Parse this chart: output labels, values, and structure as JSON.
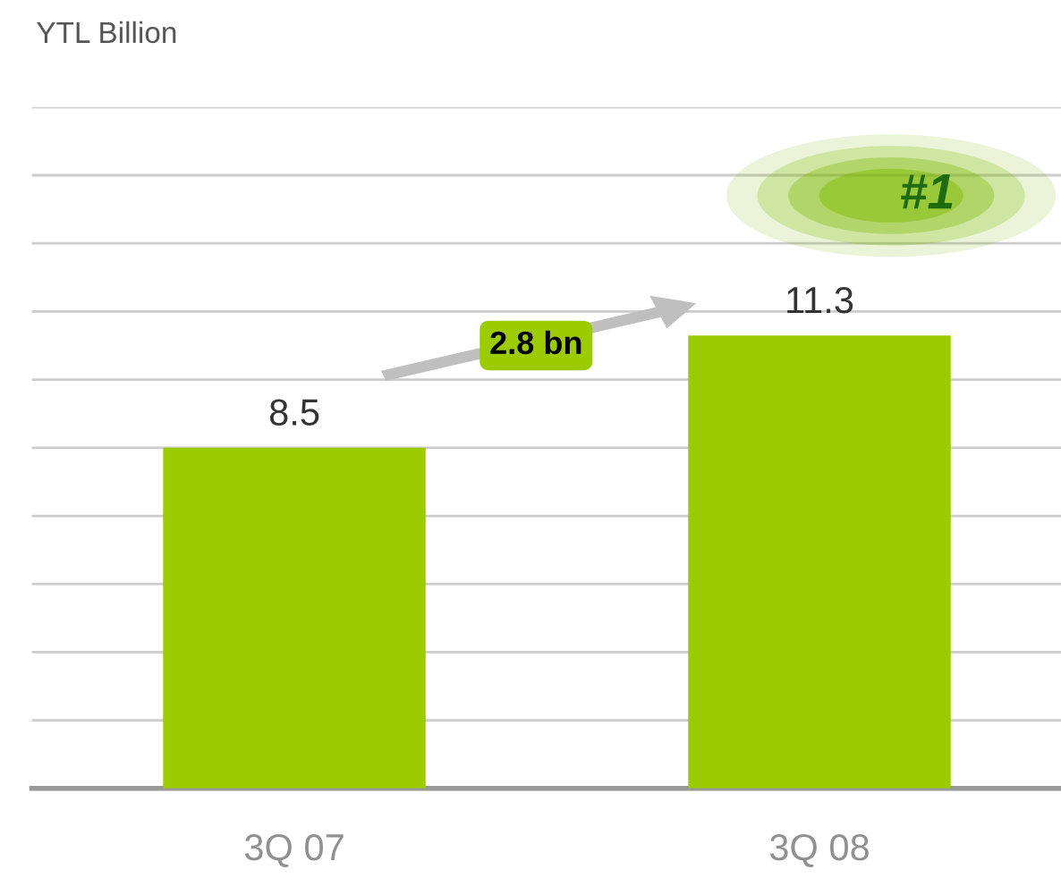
{
  "chart_data": {
    "type": "bar",
    "ylabel": "YTL Billion",
    "categories": [
      "3Q 07",
      "3Q 08"
    ],
    "values": [
      8.5,
      11.3
    ],
    "color": "#9bcb00",
    "data_labels": true,
    "ylim": [
      0,
      17
    ],
    "yticks": [
      {
        "value": 0,
        "label": null
      },
      {
        "value": 1.7,
        "label": null
      },
      {
        "value": 3.4,
        "label": null
      },
      {
        "value": 5.1,
        "label": null
      },
      {
        "value": 6.8,
        "label": null
      },
      {
        "value": 8.5,
        "label": null
      },
      {
        "value": 10.2,
        "label": null
      },
      {
        "value": 11.9,
        "label": null
      },
      {
        "value": 13.6,
        "label": null
      },
      {
        "value": 15.3,
        "label": null
      },
      {
        "value": 17,
        "label": null
      }
    ],
    "grid": "y",
    "annotations": [
      "2.8 bn",
      "#1"
    ]
  }
}
